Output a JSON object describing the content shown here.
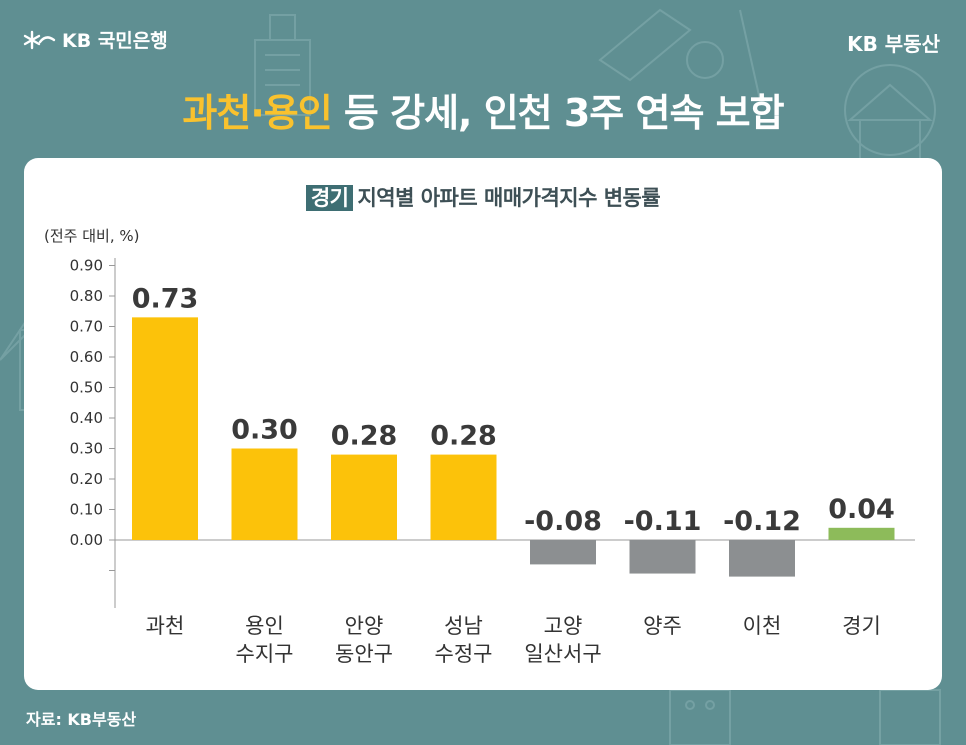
{
  "brand": {
    "bank_name": "KB 국민은행",
    "service_name": "KB 부동산"
  },
  "headline": {
    "highlight": "과천·용인",
    "rest": " 등 강세, 인천 3주 연속 보합"
  },
  "subtitle": {
    "tag": "경기",
    "text": "지역별 아파트 매매가격지수 변동률"
  },
  "unit_label": "(전주 대비, %)",
  "source": "자료: KB부동산",
  "colors": {
    "positive": "#fcc20a",
    "negative": "#8c8f91",
    "summary": "#8dbb5a",
    "highlight": "#f9c22e",
    "background": "#5f8f92"
  },
  "chart_data": {
    "type": "bar",
    "categories": [
      [
        "과천"
      ],
      [
        "용인",
        "수지구"
      ],
      [
        "안양",
        "동안구"
      ],
      [
        "성남",
        "수정구"
      ],
      [
        "고양",
        "일산서구"
      ],
      [
        "양주"
      ],
      [
        "이천"
      ],
      [
        "경기"
      ]
    ],
    "values": [
      0.73,
      0.3,
      0.28,
      0.28,
      -0.08,
      -0.11,
      -0.12,
      0.04
    ],
    "value_labels": [
      "0.73",
      "0.30",
      "0.28",
      "0.28",
      "-0.08",
      "-0.11",
      "-0.12",
      "0.04"
    ],
    "bar_colors": [
      "positive",
      "positive",
      "positive",
      "positive",
      "negative",
      "negative",
      "negative",
      "summary"
    ],
    "yticks": [
      "0.90",
      "0.80",
      "0.70",
      "0.60",
      "0.50",
      "0.40",
      "0.30",
      "0.20",
      "0.10",
      "0.00"
    ],
    "ylim": [
      -0.2,
      0.9
    ],
    "title": "",
    "ylabel": "(전주 대비, %)",
    "grid": false
  }
}
